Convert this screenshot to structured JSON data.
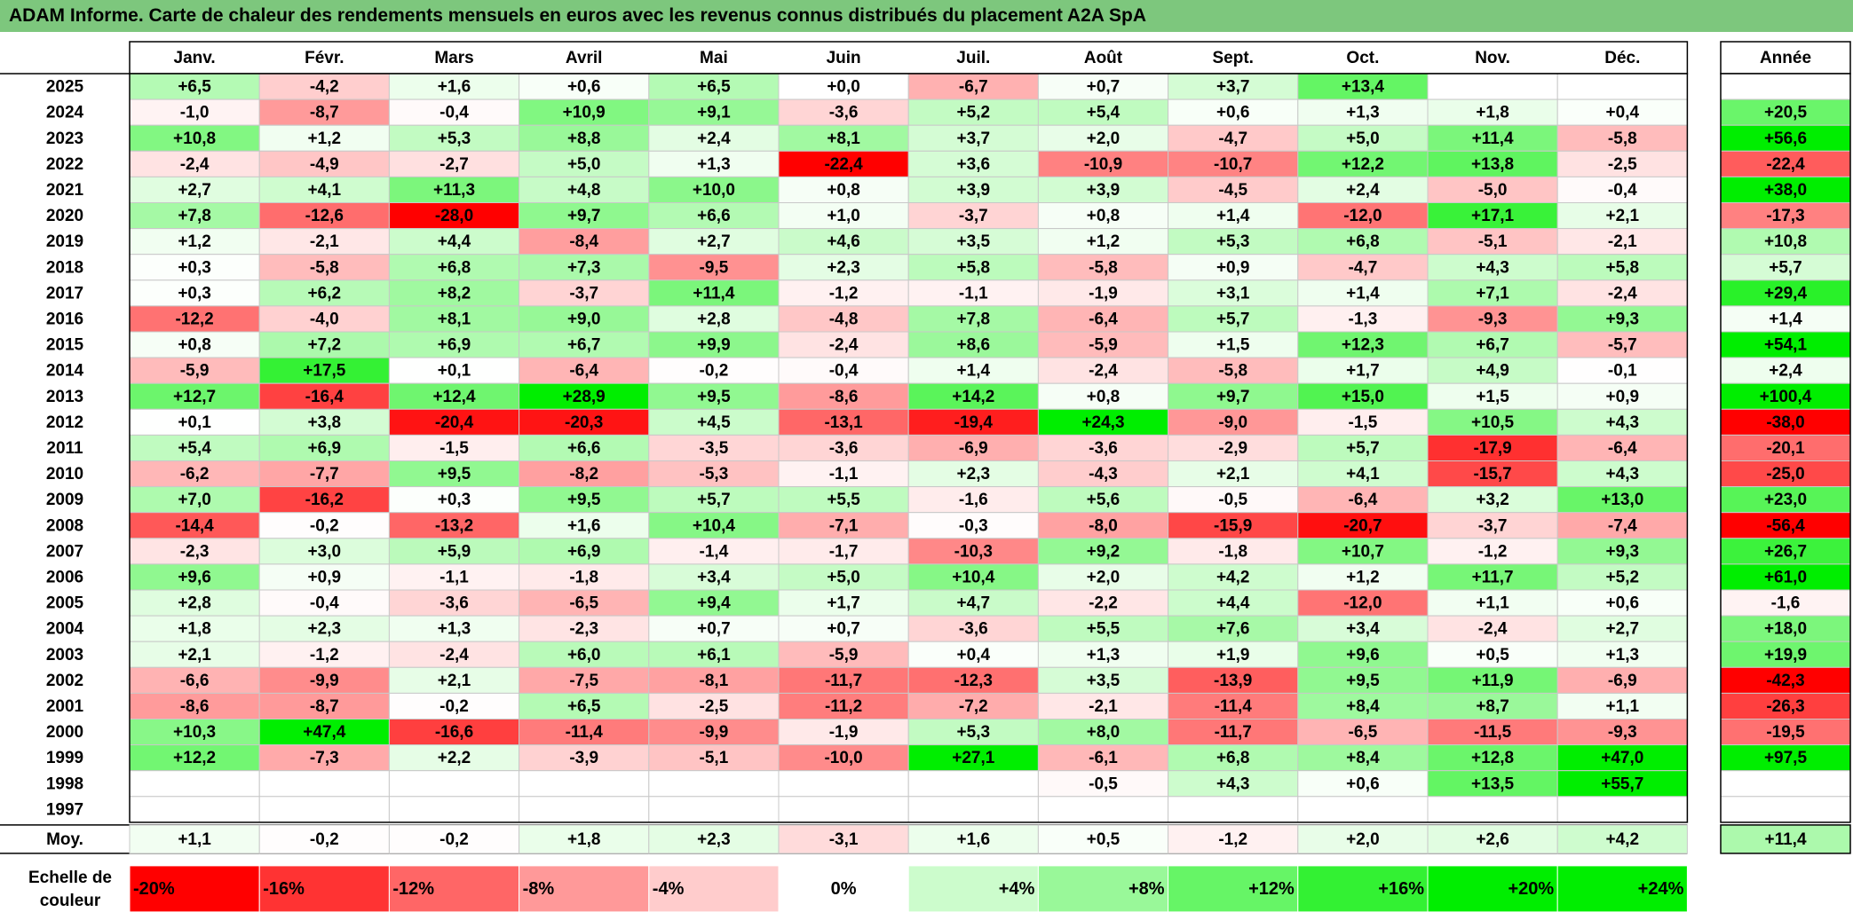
{
  "title": "ADAM Informe. Carte de chaleur des rendements mensuels en euros avec les revenus connus distribués du placement A2A SpA",
  "chart_data": {
    "type": "heatmap",
    "title": "ADAM Informe. Carte de chaleur des rendements mensuels en euros avec les revenus connus distribués du placement A2A SpA",
    "columns": [
      "Janv.",
      "Févr.",
      "Mars",
      "Avril",
      "Mai",
      "Juin",
      "Juil.",
      "Août",
      "Sept.",
      "Oct.",
      "Nov.",
      "Déc."
    ],
    "year_header": "Année",
    "rows": [
      {
        "year": "2025",
        "values": [
          "+6,5",
          "-4,2",
          "+1,6",
          "+0,6",
          "+6,5",
          "+0,0",
          "-6,7",
          "+0,7",
          "+3,7",
          "+13,4",
          "",
          ""
        ],
        "annual": ""
      },
      {
        "year": "2024",
        "values": [
          "-1,0",
          "-8,7",
          "-0,4",
          "+10,9",
          "+9,1",
          "-3,6",
          "+5,2",
          "+5,4",
          "+0,6",
          "+1,3",
          "+1,8",
          "+0,4"
        ],
        "annual": "+20,5"
      },
      {
        "year": "2023",
        "values": [
          "+10,8",
          "+1,2",
          "+5,3",
          "+8,8",
          "+2,4",
          "+8,1",
          "+3,7",
          "+2,0",
          "-4,7",
          "+5,0",
          "+11,4",
          "-5,8"
        ],
        "annual": "+56,6"
      },
      {
        "year": "2022",
        "values": [
          "-2,4",
          "-4,9",
          "-2,7",
          "+5,0",
          "+1,3",
          "-22,4",
          "+3,6",
          "-10,9",
          "-10,7",
          "+12,2",
          "+13,8",
          "-2,5"
        ],
        "annual": "-22,4"
      },
      {
        "year": "2021",
        "values": [
          "+2,7",
          "+4,1",
          "+11,3",
          "+4,8",
          "+10,0",
          "+0,8",
          "+3,9",
          "+3,9",
          "-4,5",
          "+2,4",
          "-5,0",
          "-0,4"
        ],
        "annual": "+38,0"
      },
      {
        "year": "2020",
        "values": [
          "+7,8",
          "-12,6",
          "-28,0",
          "+9,7",
          "+6,6",
          "+1,0",
          "-3,7",
          "+0,8",
          "+1,4",
          "-12,0",
          "+17,1",
          "+2,1"
        ],
        "annual": "-17,3"
      },
      {
        "year": "2019",
        "values": [
          "+1,2",
          "-2,1",
          "+4,4",
          "-8,4",
          "+2,7",
          "+4,6",
          "+3,5",
          "+1,2",
          "+5,3",
          "+6,8",
          "-5,1",
          "-2,1"
        ],
        "annual": "+10,8"
      },
      {
        "year": "2018",
        "values": [
          "+0,3",
          "-5,8",
          "+6,8",
          "+7,3",
          "-9,5",
          "+2,3",
          "+5,8",
          "-5,8",
          "+0,9",
          "-4,7",
          "+4,3",
          "+5,8"
        ],
        "annual": "+5,7"
      },
      {
        "year": "2017",
        "values": [
          "+0,3",
          "+6,2",
          "+8,2",
          "-3,7",
          "+11,4",
          "-1,2",
          "-1,1",
          "-1,9",
          "+3,1",
          "+1,4",
          "+7,1",
          "-2,4"
        ],
        "annual": "+29,4"
      },
      {
        "year": "2016",
        "values": [
          "-12,2",
          "-4,0",
          "+8,1",
          "+9,0",
          "+2,8",
          "-4,8",
          "+7,8",
          "-6,4",
          "+5,7",
          "-1,3",
          "-9,3",
          "+9,3"
        ],
        "annual": "+1,4"
      },
      {
        "year": "2015",
        "values": [
          "+0,8",
          "+7,2",
          "+6,9",
          "+6,7",
          "+9,9",
          "-2,4",
          "+8,6",
          "-5,9",
          "+1,5",
          "+12,3",
          "+6,7",
          "-5,7"
        ],
        "annual": "+54,1"
      },
      {
        "year": "2014",
        "values": [
          "-5,9",
          "+17,5",
          "+0,1",
          "-6,4",
          "-0,2",
          "-0,4",
          "+1,4",
          "-2,4",
          "-5,8",
          "+1,7",
          "+4,9",
          "-0,1"
        ],
        "annual": "+2,4"
      },
      {
        "year": "2013",
        "values": [
          "+12,7",
          "-16,4",
          "+12,4",
          "+28,9",
          "+9,5",
          "-8,6",
          "+14,2",
          "+0,8",
          "+9,7",
          "+15,0",
          "+1,5",
          "+0,9"
        ],
        "annual": "+100,4"
      },
      {
        "year": "2012",
        "values": [
          "+0,1",
          "+3,8",
          "-20,4",
          "-20,3",
          "+4,5",
          "-13,1",
          "-19,4",
          "+24,3",
          "-9,0",
          "-1,5",
          "+10,5",
          "+4,3"
        ],
        "annual": "-38,0"
      },
      {
        "year": "2011",
        "values": [
          "+5,4",
          "+6,9",
          "-1,5",
          "+6,6",
          "-3,5",
          "-3,6",
          "-6,9",
          "-3,6",
          "-2,9",
          "+5,7",
          "-17,9",
          "-6,4"
        ],
        "annual": "-20,1"
      },
      {
        "year": "2010",
        "values": [
          "-6,2",
          "-7,7",
          "+9,5",
          "-8,2",
          "-5,3",
          "-1,1",
          "+2,3",
          "-4,3",
          "+2,1",
          "+4,1",
          "-15,7",
          "+4,3"
        ],
        "annual": "-25,0"
      },
      {
        "year": "2009",
        "values": [
          "+7,0",
          "-16,2",
          "+0,3",
          "+9,5",
          "+5,7",
          "+5,5",
          "-1,6",
          "+5,6",
          "-0,5",
          "-6,4",
          "+3,2",
          "+13,0"
        ],
        "annual": "+23,0"
      },
      {
        "year": "2008",
        "values": [
          "-14,4",
          "-0,2",
          "-13,2",
          "+1,6",
          "+10,4",
          "-7,1",
          "-0,3",
          "-8,0",
          "-15,9",
          "-20,7",
          "-3,7",
          "-7,4"
        ],
        "annual": "-56,4"
      },
      {
        "year": "2007",
        "values": [
          "-2,3",
          "+3,0",
          "+5,9",
          "+6,9",
          "-1,4",
          "-1,7",
          "-10,3",
          "+9,2",
          "-1,8",
          "+10,7",
          "-1,2",
          "+9,3"
        ],
        "annual": "+26,7"
      },
      {
        "year": "2006",
        "values": [
          "+9,6",
          "+0,9",
          "-1,1",
          "-1,8",
          "+3,4",
          "+5,0",
          "+10,4",
          "+2,0",
          "+4,2",
          "+1,2",
          "+11,7",
          "+5,2"
        ],
        "annual": "+61,0"
      },
      {
        "year": "2005",
        "values": [
          "+2,8",
          "-0,4",
          "-3,6",
          "-6,5",
          "+9,4",
          "+1,7",
          "+4,7",
          "-2,2",
          "+4,4",
          "-12,0",
          "+1,1",
          "+0,6"
        ],
        "annual": "-1,6"
      },
      {
        "year": "2004",
        "values": [
          "+1,8",
          "+2,3",
          "+1,3",
          "-2,3",
          "+0,7",
          "+0,7",
          "-3,6",
          "+5,5",
          "+7,6",
          "+3,4",
          "-2,4",
          "+2,7"
        ],
        "annual": "+18,0"
      },
      {
        "year": "2003",
        "values": [
          "+2,1",
          "-1,2",
          "-2,4",
          "+6,0",
          "+6,1",
          "-5,9",
          "+0,4",
          "+1,3",
          "+1,9",
          "+9,6",
          "+0,5",
          "+1,3"
        ],
        "annual": "+19,9"
      },
      {
        "year": "2002",
        "values": [
          "-6,6",
          "-9,9",
          "+2,1",
          "-7,5",
          "-8,1",
          "-11,7",
          "-12,3",
          "+3,5",
          "-13,9",
          "+9,5",
          "+11,9",
          "-6,9"
        ],
        "annual": "-42,3"
      },
      {
        "year": "2001",
        "values": [
          "-8,6",
          "-8,7",
          "-0,2",
          "+6,5",
          "-2,5",
          "-11,2",
          "-7,2",
          "-2,1",
          "-11,4",
          "+8,4",
          "+8,7",
          "+1,1"
        ],
        "annual": "-26,3"
      },
      {
        "year": "2000",
        "values": [
          "+10,3",
          "+47,4",
          "-16,6",
          "-11,4",
          "-9,9",
          "-1,9",
          "+5,3",
          "+8,0",
          "-11,7",
          "-6,5",
          "-11,5",
          "-9,3"
        ],
        "annual": "-19,5"
      },
      {
        "year": "1999",
        "values": [
          "+12,2",
          "-7,3",
          "+2,2",
          "-3,9",
          "-5,1",
          "-10,0",
          "+27,1",
          "-6,1",
          "+6,8",
          "+8,4",
          "+12,8",
          "+47,0"
        ],
        "annual": "+97,5"
      },
      {
        "year": "1998",
        "values": [
          "",
          "",
          "",
          "",
          "",
          "",
          "",
          "-0,5",
          "+4,3",
          "+0,6",
          "+13,5",
          "+55,7"
        ],
        "annual": ""
      },
      {
        "year": "1997",
        "values": [
          "",
          "",
          "",
          "",
          "",
          "",
          "",
          "",
          "",
          "",
          "",
          ""
        ],
        "annual": ""
      }
    ],
    "average": {
      "label": "Moy.",
      "values": [
        "+1,1",
        "-0,2",
        "-0,2",
        "+1,8",
        "+2,3",
        "-3,1",
        "+1,6",
        "+0,5",
        "-1,2",
        "+2,0",
        "+2,6",
        "+4,2"
      ],
      "annual": "+11,4"
    },
    "scale": {
      "label_line1": "Echelle de",
      "label_line2": "couleur",
      "stops": [
        "-20%",
        "-16%",
        "-12%",
        "-8%",
        "-4%",
        "0%",
        "+4%",
        "+8%",
        "+12%",
        "+16%",
        "+20%",
        "+24%"
      ]
    },
    "colors": {
      "negative_max": "#ff0000",
      "neutral": "#ffffff",
      "positive_max": "#00ee00",
      "title_bar": "#7dc77d"
    }
  }
}
